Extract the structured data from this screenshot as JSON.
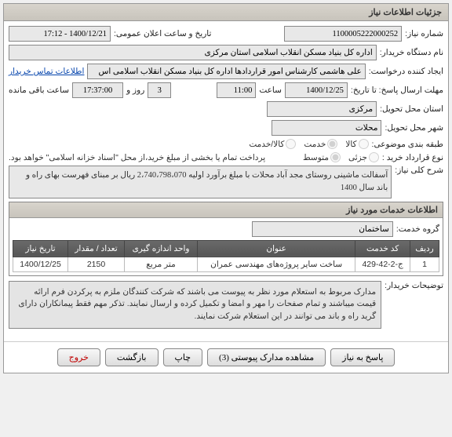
{
  "panel": {
    "title": "جزئیات اطلاعات نیاز"
  },
  "form": {
    "need_no_label": "شماره نیاز:",
    "need_no": "1100005222000252",
    "announce_label": "تاریخ و ساعت اعلان عمومی:",
    "announce": "1400/12/21 - 17:12",
    "buyer_label": "نام دستگاه خریدار:",
    "buyer": "اداره کل بنیاد مسکن انقلاب اسلامی استان مرکزی",
    "creator_label": "ایجاد کننده درخواست:",
    "creator": "علی هاشمی کارشناس امور قراردادها اداره کل بنیاد مسکن انقلاب اسلامی اس",
    "contact_link": "اطلاعات تماس خریدار",
    "deadline_label": "مهلت ارسال پاسخ: تا تاریخ:",
    "deadline_date": "1400/12/25",
    "deadline_time_label": "ساعت",
    "deadline_time": "11:00",
    "days_label": "روز و",
    "days": "3",
    "remain_label": "ساعت باقی مانده",
    "remain": "17:37:00",
    "province_label": "استان محل تحویل:",
    "province": "مرکزی",
    "city_label": "شهر محل تحویل:",
    "city": "محلات",
    "category_label": "طبقه بندی موضوعی:",
    "cat_goods": "کالا",
    "cat_service": "خدمت",
    "cat_combo": "کالا/خدمت",
    "trade_label": "نوع قرارداد خرید :",
    "trade_small": "جزئی",
    "trade_medium": "متوسط",
    "payment_note": "پرداخت تمام یا بخشی از مبلغ خرید،از محل \"اسناد خزانه اسلامی\" خواهد بود.",
    "desc_label": "شرح کلی نیاز:",
    "desc": "آسفالت ماشینی روستای مجد آباد محلات  با مبلغ برآورد اولیه 2،740،798،070 ریال بر مبنای فهرست بهای راه و باند سال 1400"
  },
  "services": {
    "header": "اطلاعات خدمات مورد نیاز",
    "group_label": "گروه خدمت:",
    "group": "ساختمان",
    "columns": [
      "ردیف",
      "کد خدمت",
      "عنوان",
      "واحد اندازه گیری",
      "تعداد / مقدار",
      "تاریخ نیاز"
    ],
    "rows": [
      [
        "1",
        "ج-2-42-429",
        "ساخت سایر پروژه‌های مهندسی عمران",
        "متر مربع",
        "2150",
        "1400/12/25"
      ]
    ]
  },
  "buyer_note": {
    "label": "توضیحات خریدار:",
    "text": "مدارک مربوط به استعلام مورد نظر به پیوست می باشند که شرکت کنندگان ملزم به پرکردن فرم ارائه قیمت میباشند و تمام صفحات را مهر و امضا و تکمیل کرده و ارسال نمایند. تذکر مهم فقط پیمانکاران دارای گرید راه و باند می توانند در این استعلام شرکت نمایند."
  },
  "buttons": {
    "reply": "پاسخ به نیاز",
    "attach": "مشاهده مدارک پیوستی (3)",
    "print": "چاپ",
    "back": "بازگشت",
    "exit": "خروج"
  },
  "colors": {
    "header_bg": "#d0ccc4",
    "th_bg": "#5a5a5a",
    "link": "#0645ad"
  }
}
